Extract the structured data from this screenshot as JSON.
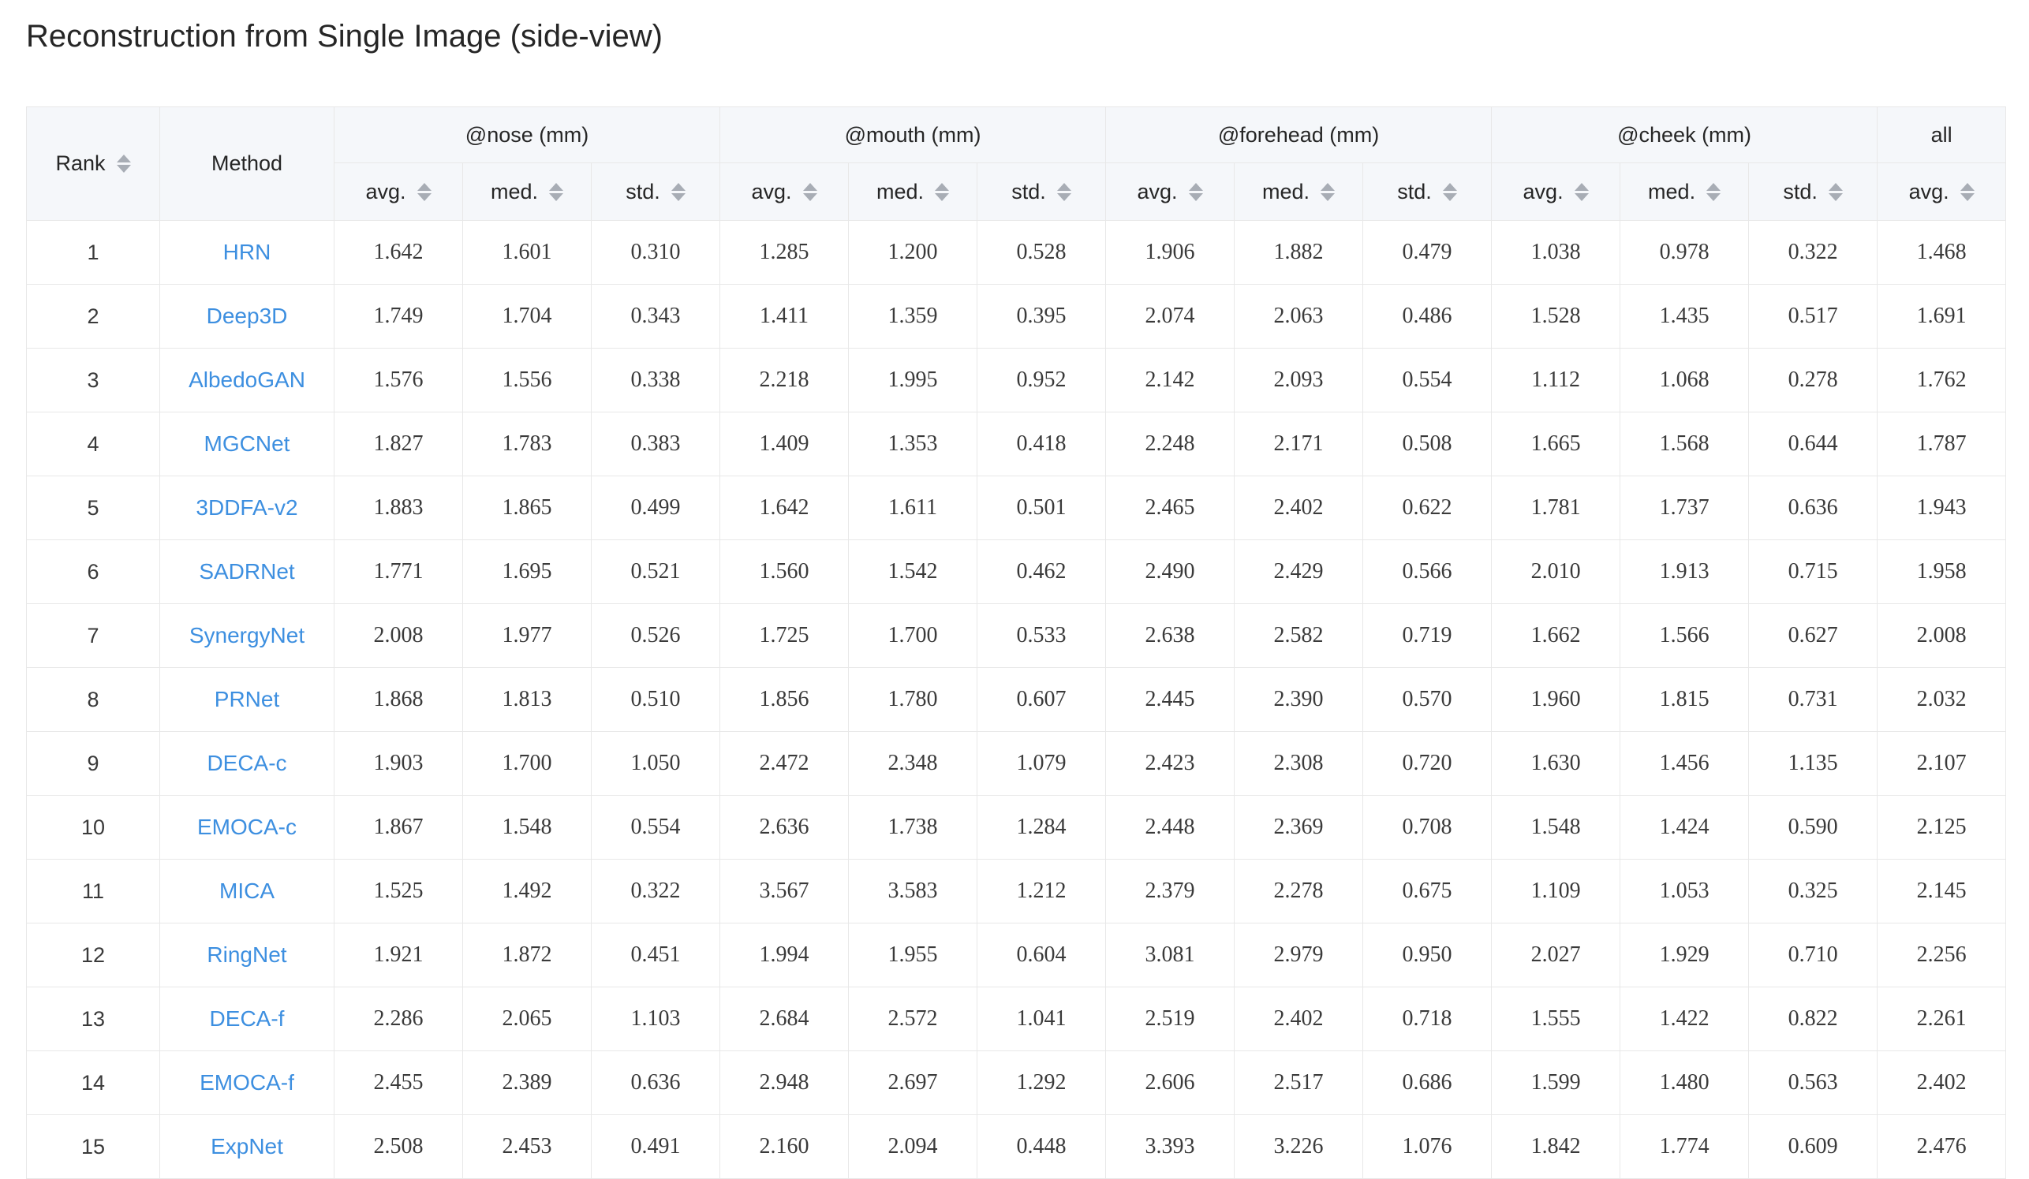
{
  "page": {
    "title": "Reconstruction from Single Image (side-view)"
  },
  "table": {
    "rank_label": "Rank",
    "method_label": "Method",
    "groups": [
      "@nose (mm)",
      "@mouth (mm)",
      "@forehead (mm)",
      "@cheek (mm)",
      "all"
    ],
    "sub_labels": [
      "avg.",
      "med.",
      "std.",
      "avg.",
      "med.",
      "std.",
      "avg.",
      "med.",
      "std.",
      "avg.",
      "med.",
      "std.",
      "avg."
    ],
    "rows": [
      {
        "rank": "1",
        "method": "HRN",
        "values": [
          "1.642",
          "1.601",
          "0.310",
          "1.285",
          "1.200",
          "0.528",
          "1.906",
          "1.882",
          "0.479",
          "1.038",
          "0.978",
          "0.322",
          "1.468"
        ]
      },
      {
        "rank": "2",
        "method": "Deep3D",
        "values": [
          "1.749",
          "1.704",
          "0.343",
          "1.411",
          "1.359",
          "0.395",
          "2.074",
          "2.063",
          "0.486",
          "1.528",
          "1.435",
          "0.517",
          "1.691"
        ]
      },
      {
        "rank": "3",
        "method": "AlbedoGAN",
        "values": [
          "1.576",
          "1.556",
          "0.338",
          "2.218",
          "1.995",
          "0.952",
          "2.142",
          "2.093",
          "0.554",
          "1.112",
          "1.068",
          "0.278",
          "1.762"
        ]
      },
      {
        "rank": "4",
        "method": "MGCNet",
        "values": [
          "1.827",
          "1.783",
          "0.383",
          "1.409",
          "1.353",
          "0.418",
          "2.248",
          "2.171",
          "0.508",
          "1.665",
          "1.568",
          "0.644",
          "1.787"
        ]
      },
      {
        "rank": "5",
        "method": "3DDFA-v2",
        "values": [
          "1.883",
          "1.865",
          "0.499",
          "1.642",
          "1.611",
          "0.501",
          "2.465",
          "2.402",
          "0.622",
          "1.781",
          "1.737",
          "0.636",
          "1.943"
        ]
      },
      {
        "rank": "6",
        "method": "SADRNet",
        "values": [
          "1.771",
          "1.695",
          "0.521",
          "1.560",
          "1.542",
          "0.462",
          "2.490",
          "2.429",
          "0.566",
          "2.010",
          "1.913",
          "0.715",
          "1.958"
        ]
      },
      {
        "rank": "7",
        "method": "SynergyNet",
        "values": [
          "2.008",
          "1.977",
          "0.526",
          "1.725",
          "1.700",
          "0.533",
          "2.638",
          "2.582",
          "0.719",
          "1.662",
          "1.566",
          "0.627",
          "2.008"
        ]
      },
      {
        "rank": "8",
        "method": "PRNet",
        "values": [
          "1.868",
          "1.813",
          "0.510",
          "1.856",
          "1.780",
          "0.607",
          "2.445",
          "2.390",
          "0.570",
          "1.960",
          "1.815",
          "0.731",
          "2.032"
        ]
      },
      {
        "rank": "9",
        "method": "DECA-c",
        "values": [
          "1.903",
          "1.700",
          "1.050",
          "2.472",
          "2.348",
          "1.079",
          "2.423",
          "2.308",
          "0.720",
          "1.630",
          "1.456",
          "1.135",
          "2.107"
        ]
      },
      {
        "rank": "10",
        "method": "EMOCA-c",
        "values": [
          "1.867",
          "1.548",
          "0.554",
          "2.636",
          "1.738",
          "1.284",
          "2.448",
          "2.369",
          "0.708",
          "1.548",
          "1.424",
          "0.590",
          "2.125"
        ]
      },
      {
        "rank": "11",
        "method": "MICA",
        "values": [
          "1.525",
          "1.492",
          "0.322",
          "3.567",
          "3.583",
          "1.212",
          "2.379",
          "2.278",
          "0.675",
          "1.109",
          "1.053",
          "0.325",
          "2.145"
        ]
      },
      {
        "rank": "12",
        "method": "RingNet",
        "values": [
          "1.921",
          "1.872",
          "0.451",
          "1.994",
          "1.955",
          "0.604",
          "3.081",
          "2.979",
          "0.950",
          "2.027",
          "1.929",
          "0.710",
          "2.256"
        ]
      },
      {
        "rank": "13",
        "method": "DECA-f",
        "values": [
          "2.286",
          "2.065",
          "1.103",
          "2.684",
          "2.572",
          "1.041",
          "2.519",
          "2.402",
          "0.718",
          "1.555",
          "1.422",
          "0.822",
          "2.261"
        ]
      },
      {
        "rank": "14",
        "method": "EMOCA-f",
        "values": [
          "2.455",
          "2.389",
          "0.636",
          "2.948",
          "2.697",
          "1.292",
          "2.606",
          "2.517",
          "0.686",
          "1.599",
          "1.480",
          "0.563",
          "2.402"
        ]
      },
      {
        "rank": "15",
        "method": "ExpNet",
        "values": [
          "2.508",
          "2.453",
          "0.491",
          "2.160",
          "2.094",
          "0.448",
          "3.393",
          "3.226",
          "1.076",
          "1.842",
          "1.774",
          "0.609",
          "2.476"
        ]
      }
    ]
  },
  "icons": {
    "sort": "sort-icon"
  },
  "colors": {
    "link": "#3d8fe0",
    "header_bg": "#f5f7fa",
    "border": "#e8e8e8"
  }
}
